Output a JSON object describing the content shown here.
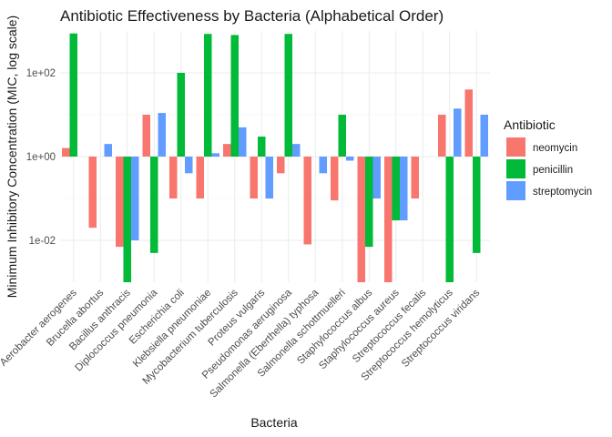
{
  "chart_data": {
    "type": "bar",
    "title": "Antibiotic Effectiveness by Bacteria (Alphabetical Order)",
    "xlabel": "Bacteria",
    "ylabel": "Minimum Inhibitory Concentration (MIC, log scale)",
    "yscale": "log10",
    "ylim": [
      0.001,
      1000
    ],
    "yticks": [
      0.01,
      1,
      100
    ],
    "ytick_labels": [
      "1e-02",
      "1e+00",
      "1e+02"
    ],
    "grid": true,
    "legend_title": "Antibiotic",
    "legend_position": "right",
    "categories": [
      "Aerobacter aerogenes",
      "Brucella abortus",
      "Bacillus anthracis",
      "Diplococcus pneumonia",
      "Escherichia coli",
      "Klebsiella pneumoniae",
      "Mycobacterium tuberculosis",
      "Proteus vulgaris",
      "Pseudomonas aeruginosa",
      "Salmonella (Eberthella) typhosa",
      "Salmonella schottmuelleri",
      "Staphylococcus albus",
      "Staphylococcus aureus",
      "Streptococcus fecalis",
      "Streptococcus hemolyticus",
      "Streptococcus viridans"
    ],
    "series": [
      {
        "name": "neomycin",
        "color": "#F8766D",
        "values": [
          1.6,
          0.02,
          0.007,
          10,
          0.1,
          0.1,
          2,
          0.1,
          0.4,
          0.008,
          0.09,
          0.001,
          0.001,
          0.1,
          10,
          40
        ]
      },
      {
        "name": "penicillin",
        "color": "#00BA38",
        "values": [
          870,
          1,
          0.001,
          0.005,
          100,
          850,
          800,
          3,
          850,
          1,
          10,
          0.007,
          0.03,
          1,
          0.001,
          0.005
        ]
      },
      {
        "name": "streptomycin",
        "color": "#619CFF",
        "values": [
          1,
          2,
          0.01,
          11,
          0.4,
          1.2,
          5,
          0.1,
          2,
          0.4,
          0.8,
          0.1,
          0.03,
          1,
          14,
          10
        ]
      }
    ]
  }
}
